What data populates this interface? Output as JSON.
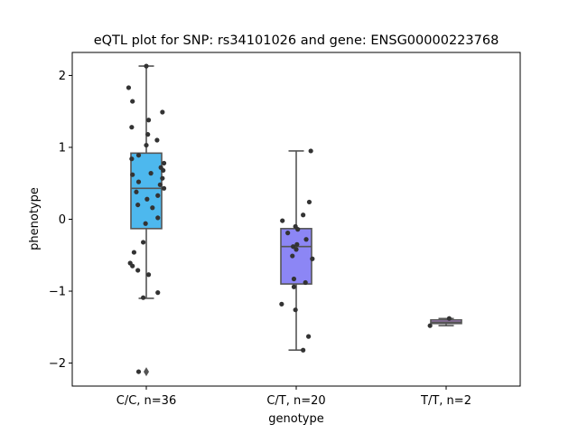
{
  "chart_data": {
    "type": "box",
    "title": "eQTL plot for SNP: rs34101026 and gene: ENSG00000223768",
    "xlabel": "genotype",
    "ylabel": "phenotype",
    "ylim": [
      -2.32,
      2.32
    ],
    "yticks": [
      -2,
      -1,
      0,
      1,
      2
    ],
    "ytick_labels": [
      "−2",
      "−1",
      "0",
      "1",
      "2"
    ],
    "grid": false,
    "legend": "none",
    "categories": [
      "C/C, n=36",
      "C/T, n=20",
      "T/T, n=2"
    ],
    "boxes": [
      {
        "category": "C/C, n=36",
        "color": "#4db8ee",
        "q1": -0.13,
        "median": 0.43,
        "q3": 0.92,
        "whisker_low": -1.1,
        "whisker_high": 2.13,
        "outliers": [
          -2.12
        ]
      },
      {
        "category": "C/T, n=20",
        "color": "#8c86f5",
        "q1": -0.9,
        "median": -0.38,
        "q3": -0.13,
        "whisker_low": -1.82,
        "whisker_high": 0.95,
        "outliers": []
      },
      {
        "category": "T/T, n=2",
        "color": "#c98ff0",
        "q1": -1.45,
        "median": -1.43,
        "q3": -1.4,
        "whisker_low": -1.48,
        "whisker_high": -1.38,
        "outliers": []
      }
    ],
    "points": [
      {
        "category": "C/C, n=36",
        "values": [
          2.13,
          1.83,
          1.64,
          1.49,
          1.38,
          1.28,
          1.18,
          1.1,
          1.03,
          0.89,
          0.84,
          0.78,
          0.72,
          0.68,
          0.62,
          0.57,
          0.52,
          0.48,
          0.43,
          0.38,
          0.33,
          0.28,
          0.2,
          0.16,
          0.02,
          -0.06,
          -0.32,
          -0.46,
          -0.61,
          -0.65,
          -0.71,
          -0.77,
          -1.02,
          -1.09,
          -2.12,
          0.64
        ],
        "jitter": [
          0.0,
          -0.23,
          -0.18,
          0.21,
          0.03,
          -0.19,
          0.02,
          0.14,
          0.0,
          -0.1,
          -0.19,
          0.23,
          0.19,
          0.22,
          -0.18,
          0.21,
          -0.1,
          0.18,
          0.23,
          -0.13,
          0.15,
          0.01,
          -0.11,
          0.08,
          0.15,
          -0.01,
          -0.04,
          -0.16,
          -0.21,
          -0.18,
          -0.11,
          0.03,
          0.15,
          -0.04,
          -0.1,
          0.06
        ]
      },
      {
        "category": "C/T, n=20",
        "values": [
          0.95,
          0.24,
          0.06,
          -0.02,
          -0.1,
          -0.14,
          -0.19,
          -0.28,
          -0.35,
          -0.38,
          -0.42,
          -0.51,
          -0.55,
          -0.83,
          -0.88,
          -0.94,
          -1.18,
          -1.26,
          -1.63,
          -1.82
        ],
        "jitter": [
          0.19,
          0.17,
          0.09,
          -0.18,
          -0.01,
          0.02,
          -0.11,
          0.13,
          0.01,
          -0.04,
          0.0,
          -0.05,
          0.21,
          -0.03,
          0.12,
          -0.03,
          -0.19,
          -0.01,
          0.16,
          0.09
        ]
      },
      {
        "category": "T/T, n=2",
        "values": [
          -1.38,
          -1.48
        ],
        "jitter": [
          0.04,
          -0.21
        ]
      }
    ]
  }
}
